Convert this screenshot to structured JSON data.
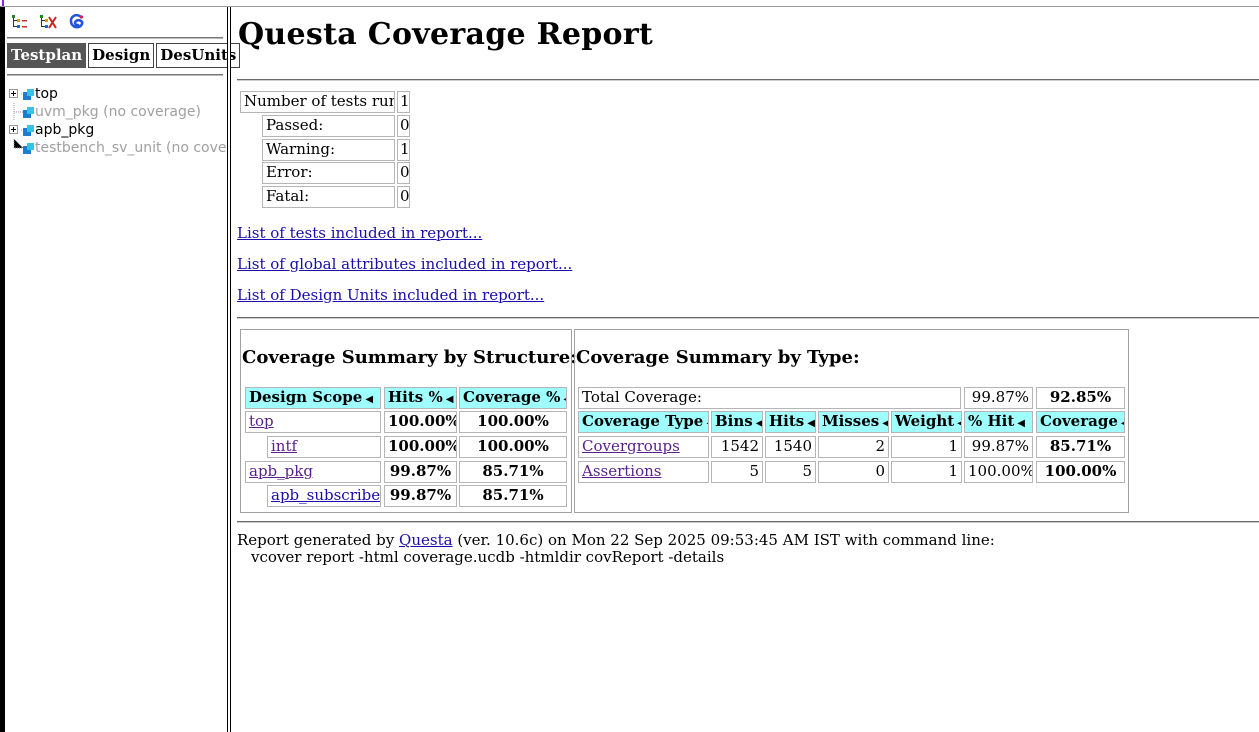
{
  "sidebar": {
    "tabs": [
      "Testplan",
      "Design",
      "DesUnits"
    ],
    "active_tab": "Testplan",
    "tree": [
      {
        "label": "top",
        "expandable": true,
        "covered": true
      },
      {
        "label": "uvm_pkg (no coverage)",
        "expandable": false,
        "covered": false
      },
      {
        "label": "apb_pkg",
        "expandable": true,
        "covered": true
      },
      {
        "label": "testbench_sv_unit (no coverage)",
        "expandable": false,
        "covered": false
      }
    ],
    "icons": [
      "tree-expand-icon",
      "tree-collapse-icon",
      "questa-logo-icon"
    ]
  },
  "report": {
    "title": "Questa Coverage Report",
    "tests": {
      "run_label": "Number of tests run:",
      "run": "1",
      "passed_label": "Passed:",
      "passed": "0",
      "warning_label": "Warning:",
      "warning": "1",
      "error_label": "Error:",
      "error": "0",
      "fatal_label": "Fatal:",
      "fatal": "0"
    },
    "links": [
      "List of tests included in report...",
      "List of global attributes included in report...",
      "List of Design Units included in report..."
    ],
    "structure": {
      "title": "Coverage Summary by Structure:",
      "headers": [
        "Design Scope",
        "Hits %",
        "Coverage %"
      ],
      "rows": [
        {
          "scope": "top",
          "hits": "100.00%",
          "coverage": "100.00%"
        },
        {
          "scope": "intf",
          "hits": "100.00%",
          "coverage": "100.00%"
        },
        {
          "scope": "apb_pkg",
          "hits": "99.87%",
          "coverage": "85.71%"
        },
        {
          "scope": "apb_subscriber",
          "hits": "99.87%",
          "coverage": "85.71%"
        }
      ]
    },
    "type": {
      "title": "Coverage Summary by Type:",
      "total_label": "Total Coverage:",
      "total_hit": "99.87%",
      "total_cov": "92.85%",
      "headers": [
        "Coverage Type",
        "Bins",
        "Hits",
        "Misses",
        "Weight",
        "% Hit",
        "Coverage"
      ],
      "rows": [
        {
          "type": "Covergroups",
          "bins": "1542",
          "hits": "1540",
          "misses": "2",
          "weight": "1",
          "hit": "99.87%",
          "coverage": "85.71%"
        },
        {
          "type": "Assertions",
          "bins": "5",
          "hits": "5",
          "misses": "0",
          "weight": "1",
          "hit": "100.00%",
          "coverage": "100.00%"
        }
      ]
    },
    "footer": {
      "prefix": "Report generated by ",
      "tool": "Questa",
      "suffix": " (ver. 10.6c) on Mon 22 Sep 2025 09:53:45 AM IST with command line:",
      "command": "vcover report -html coverage.ucdb -htmldir covReport -details"
    }
  },
  "colors": {
    "header_bg": "#9fffff",
    "link": "#1a0dab",
    "visited_link": "#5a1f8a",
    "tab_active": "#555555"
  }
}
